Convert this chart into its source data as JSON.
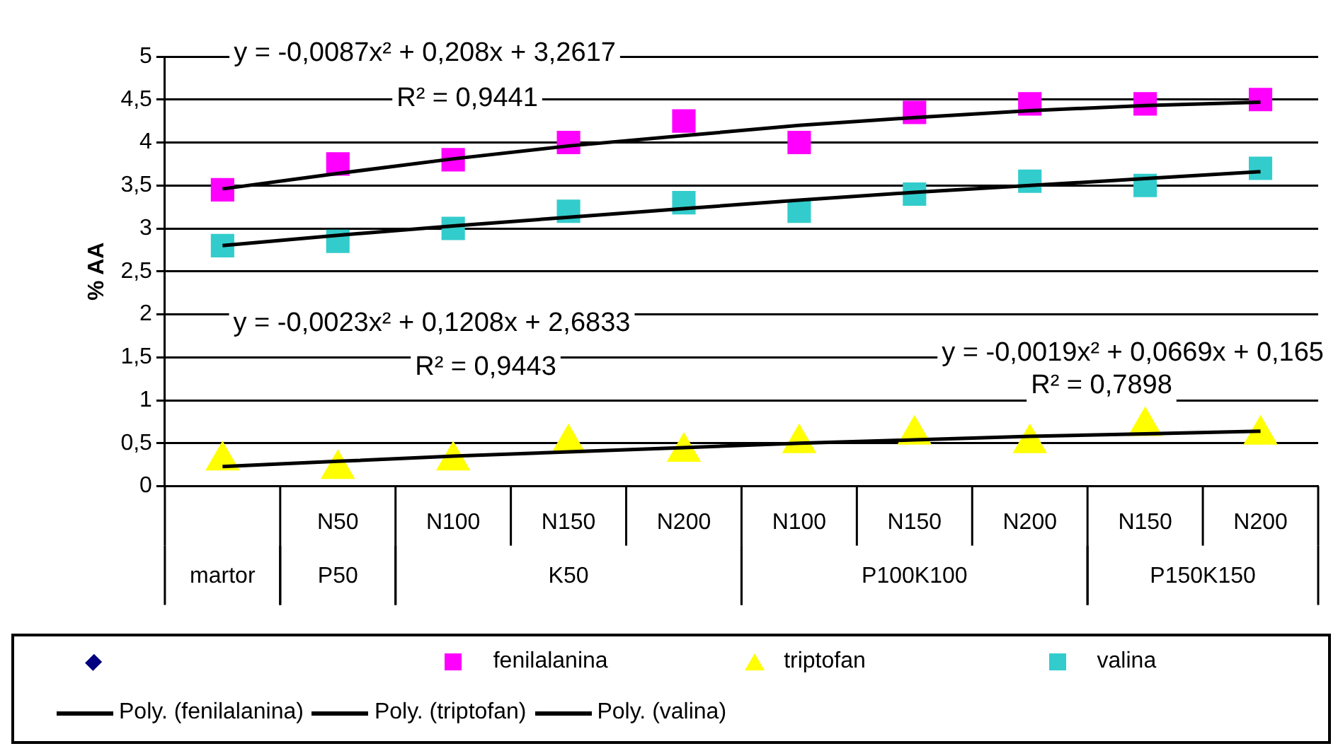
{
  "chart_data": {
    "type": "scatter",
    "ylabel": "% AA",
    "categories": [
      null,
      "N50",
      "N100",
      "N150",
      "N200",
      "N100",
      "N150",
      "N200",
      "N150",
      "N200"
    ],
    "series": [
      {
        "name": "fenilalanina",
        "marker": "square",
        "color": "#ff00ff",
        "values": [
          3.45,
          3.75,
          3.8,
          4.0,
          4.25,
          4.0,
          4.35,
          4.45,
          4.45,
          4.5
        ]
      },
      {
        "name": "triptofan",
        "marker": "triangle",
        "color": "#ffff00",
        "values": [
          0.3,
          0.2,
          0.3,
          0.5,
          0.4,
          0.5,
          0.6,
          0.5,
          0.7,
          0.6
        ]
      },
      {
        "name": "valina",
        "marker": "square",
        "color": "#33cccc",
        "values": [
          2.8,
          2.85,
          3.0,
          3.2,
          3.3,
          3.2,
          3.4,
          3.55,
          3.5,
          3.7
        ]
      },
      {
        "name": "Poly. (fenilalanina)",
        "type": "line",
        "marker": "none",
        "color": "#000000",
        "values": [
          3.46,
          3.64,
          3.81,
          3.96,
          4.08,
          4.2,
          4.29,
          4.37,
          4.43,
          4.47
        ]
      },
      {
        "name": "Poly. (triptofan)",
        "type": "line",
        "marker": "none",
        "color": "#000000",
        "values": [
          0.23,
          0.29,
          0.35,
          0.4,
          0.45,
          0.5,
          0.54,
          0.58,
          0.61,
          0.64
        ]
      },
      {
        "name": "Poly. (valina)",
        "type": "line",
        "marker": "none",
        "color": "#000000",
        "values": [
          2.8,
          2.92,
          3.03,
          3.13,
          3.23,
          3.33,
          3.42,
          3.5,
          3.58,
          3.66
        ]
      }
    ],
    "ylim": [
      0,
      5
    ],
    "yticks": [
      0,
      {
        "value": 0.5,
        "label": "0,5"
      },
      1,
      {
        "value": 1.5,
        "label": "1,5"
      },
      2,
      {
        "value": 2.5,
        "label": "2,5"
      },
      3,
      {
        "value": 3.5,
        "label": "3,5"
      },
      4,
      {
        "value": 4.5,
        "label": "4,5"
      },
      5
    ],
    "grid": "y",
    "legend": "bottom",
    "annotations": [
      "y = -0,0087x² + 0,208x + 3,2617",
      "R² = 0,9441",
      "y = -0,0023x² + 0,1208x + 2,6833",
      "R² = 0,9443",
      "y = -0,0019x² + 0,0669x + 0,165",
      "R² = 0,7898",
      "martor",
      "P50",
      "K50",
      "P100K100",
      "P150K150"
    ]
  }
}
